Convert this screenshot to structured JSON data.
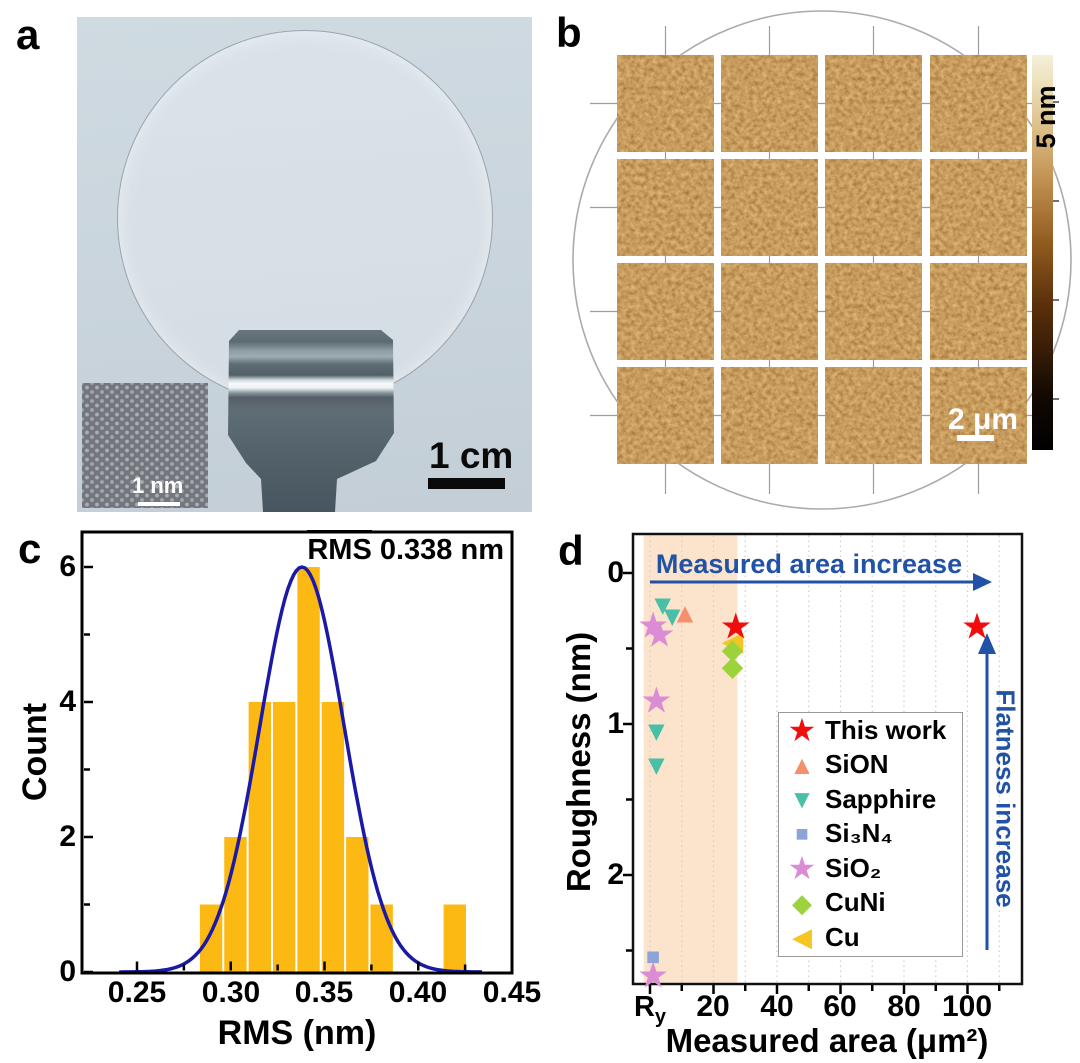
{
  "figure": {
    "panel_labels": [
      "a",
      "b",
      "c",
      "d"
    ]
  },
  "panel_a": {
    "scale_bar_label": "1 cm",
    "inset_scale_bar_label": "1 nm"
  },
  "panel_b": {
    "colorbar_label": "5 nm",
    "scale_bar_label": "2 μm",
    "grid_rows": 4,
    "grid_cols": 4
  },
  "chart_data": [
    {
      "type": "bar",
      "panel": "c",
      "xlabel": "RMS (nm)",
      "ylabel": "Count",
      "annotation": {
        "overline": "RMS",
        "rest": " 0.338 nm"
      },
      "bin_start": 0.283,
      "bin_width": 0.013,
      "counts": [
        1,
        2,
        4,
        4,
        6,
        4,
        2,
        1,
        0,
        0,
        1
      ],
      "x_ticks": [
        "0.25",
        "0.30",
        "0.35",
        "0.40",
        "0.45"
      ],
      "x_tick_values": [
        0.25,
        0.3,
        0.35,
        0.4,
        0.45
      ],
      "y_ticks": [
        "0",
        "2",
        "4",
        "6"
      ],
      "y_tick_values": [
        0,
        2,
        4,
        6
      ],
      "xlim": [
        0.2207,
        0.45
      ],
      "ylim": [
        0,
        6.53
      ],
      "bar_color": "#FCB813",
      "gauss_fit": {
        "mean": 0.338,
        "sigma": 0.0225,
        "amplitude": 6,
        "color": "#1A1AA6"
      }
    },
    {
      "type": "scatter",
      "panel": "d",
      "xlabel": "Measured area (μm²)",
      "ylabel": "Roughness (nm)",
      "x_tick_first": {
        "main": "R",
        "sub": "y"
      },
      "x_ticks": [
        "20",
        "40",
        "60",
        "80",
        "100"
      ],
      "x_tick_values": [
        20,
        40,
        60,
        80,
        100
      ],
      "y_ticks": [
        "0",
        "1",
        "2"
      ],
      "y_tick_values": [
        0,
        1,
        2
      ],
      "xlim": [
        -5.4,
        117
      ],
      "ylim_inverted": [
        -0.26,
        2.72
      ],
      "y_axis_inverted": true,
      "grid": "vertical-dotted-every-10",
      "highlight_band": {
        "x_range": [
          -2,
          27.5
        ],
        "color": "#FBE3CC"
      },
      "annotations": {
        "top_arrow_text": "Measured area increase",
        "right_arrow_text": "Flatness increase",
        "arrow_color": "#2152A5"
      },
      "legend_position": "center-right",
      "series": [
        {
          "name": "This work",
          "marker": "star",
          "color": "#F20D0D",
          "points": [
            [
              27,
              0.36
            ],
            [
              103,
              0.36
            ]
          ]
        },
        {
          "name": "SiON",
          "marker": "triangle-up",
          "color": "#F5906E",
          "points": [
            [
              11,
              0.27
            ]
          ]
        },
        {
          "name": "Sapphire",
          "marker": "triangle-down",
          "color": "#49BFA7",
          "points": [
            [
              4,
              0.22
            ],
            [
              7,
              0.29
            ],
            [
              2,
              1.05
            ],
            [
              2,
              1.28
            ]
          ]
        },
        {
          "name": "Si₃N₄",
          "marker": "square",
          "color": "#8CA5D6",
          "points": [
            [
              1,
              2.55
            ]
          ]
        },
        {
          "name": "SiO₂",
          "marker": "star",
          "color": "#DB8CD4",
          "points": [
            [
              1,
              0.35
            ],
            [
              3,
              0.41
            ],
            [
              2,
              0.85
            ],
            [
              1,
              2.67
            ]
          ]
        },
        {
          "name": "CuNi",
          "marker": "diamond",
          "color": "#9CD23C",
          "points": [
            [
              26,
              0.51
            ],
            [
              26,
              0.62
            ]
          ]
        },
        {
          "name": "Cu",
          "marker": "triangle-left",
          "color": "#F5C623",
          "points": [
            [
              26,
              0.46
            ]
          ]
        }
      ]
    }
  ]
}
